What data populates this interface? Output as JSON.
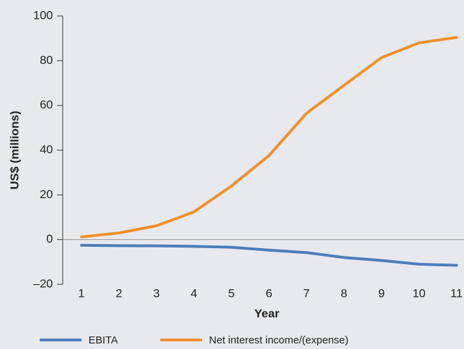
{
  "chart_data": {
    "type": "line",
    "xlabel": "Year",
    "ylabel": "US$ (millions)",
    "x": [
      1,
      2,
      3,
      4,
      5,
      6,
      7,
      8,
      9,
      10,
      11
    ],
    "series": [
      {
        "name": "EBITA",
        "color": "#4a7ebb",
        "values": [
          -2.5,
          -2.7,
          -2.8,
          -3,
          -3.4,
          -4.7,
          -5.8,
          -8,
          -9.3,
          -11,
          -11.5
        ]
      },
      {
        "name": "Net interest income/(expense)",
        "color": "#f0902a",
        "values": [
          1.2,
          3,
          6.2,
          12.4,
          24,
          37.6,
          56.5,
          69,
          81.4,
          88,
          90.4
        ]
      }
    ],
    "xlim": [
      0.5,
      11.2
    ],
    "xticks": [
      1,
      2,
      3,
      4,
      5,
      6,
      7,
      8,
      9,
      10,
      11
    ],
    "ylim": [
      -20,
      100
    ],
    "yticks": [
      {
        "value": -20,
        "label": "–20"
      },
      0,
      20,
      40,
      60,
      80,
      100
    ],
    "legend": "bottom"
  }
}
